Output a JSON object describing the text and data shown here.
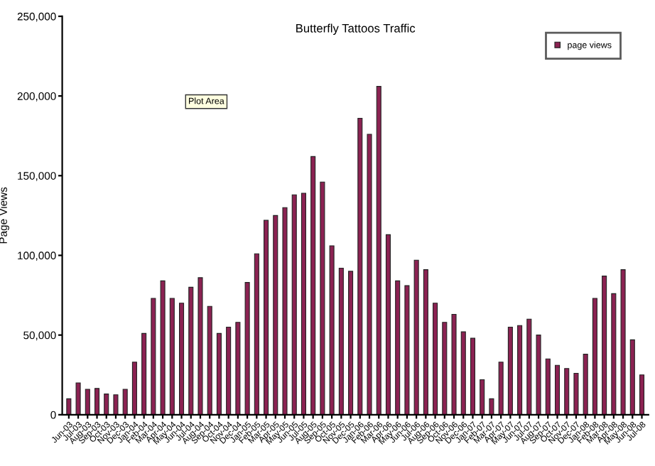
{
  "chart_data": {
    "type": "bar",
    "title": "Butterfly Tattoos Traffic",
    "ylabel": "Page Views",
    "categories": [
      "Jun-03",
      "Jul-03",
      "Aug-03",
      "Sep-03",
      "Oct-03",
      "Nov-03",
      "Dec-03",
      "Jan-04",
      "Feb-04",
      "Mar-04",
      "Apr-04",
      "May-04",
      "Jun-04",
      "Jul-04",
      "Aug-04",
      "Sep-04",
      "Oct-04",
      "Nov-04",
      "Dec-04",
      "Jan-05",
      "Feb-05",
      "Mar-05",
      "Apr-05",
      "May-05",
      "Jun-05",
      "Jul-05",
      "Aug-05",
      "Sep-05",
      "Oct-05",
      "Nov-05",
      "Dec-05",
      "Jan-06",
      "Feb-06",
      "Mar-06",
      "Apr-06",
      "May-06",
      "Jun-06",
      "Jul-06",
      "Aug-06",
      "Sep-06",
      "Oct-06",
      "Nov-06",
      "Dec-06",
      "Jan-07",
      "Feb-07",
      "Mar-07",
      "Apr-07",
      "May-07",
      "Jun-07",
      "Jul-07",
      "Aug-07",
      "Sep-07",
      "Oct-07",
      "Nov-07",
      "Dec-07",
      "Jan-08",
      "Feb-08",
      "Mar-08",
      "Apr-08",
      "May-08",
      "Jun-08",
      "Jul-08"
    ],
    "series": [
      {
        "name": "page views",
        "color": "#8b2252",
        "values": [
          10000,
          20000,
          16000,
          16500,
          13000,
          12500,
          16000,
          33000,
          51000,
          73000,
          84000,
          73000,
          70000,
          80000,
          86000,
          68000,
          51000,
          55000,
          58000,
          83000,
          101000,
          122000,
          125000,
          130000,
          138000,
          139000,
          162000,
          146000,
          106000,
          92000,
          90000,
          186000,
          176000,
          206000,
          113000,
          84000,
          81000,
          97000,
          91000,
          70000,
          58000,
          63000,
          52000,
          48000,
          22000,
          10000,
          33000,
          55000,
          56000,
          60000,
          50000,
          35000,
          31000,
          29000,
          26000,
          38000,
          73000,
          87000,
          76000,
          91000,
          47000,
          25000
        ]
      }
    ],
    "ylim": [
      0,
      250000
    ],
    "yticks": [
      {
        "value": 0,
        "label": "0"
      },
      {
        "value": 50000,
        "label": "50,000"
      },
      {
        "value": 100000,
        "label": "100,000"
      },
      {
        "value": 150000,
        "label": "150,000"
      },
      {
        "value": 200000,
        "label": "200,000"
      },
      {
        "value": 250000,
        "label": "250,000"
      }
    ],
    "legend": "top right",
    "grid": false,
    "annotations": [
      "Plot Area"
    ]
  }
}
